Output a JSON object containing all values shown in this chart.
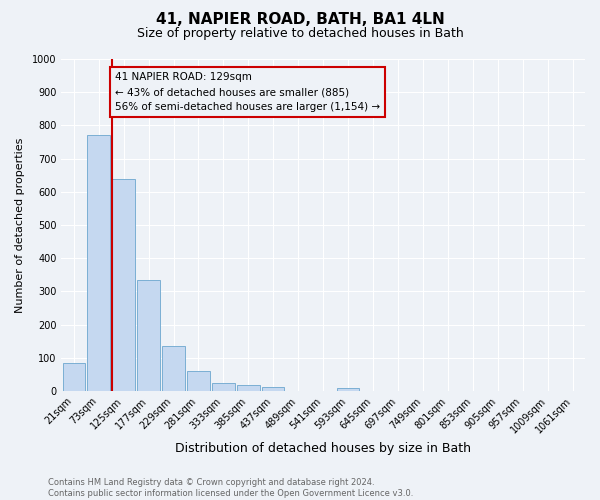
{
  "title": "41, NAPIER ROAD, BATH, BA1 4LN",
  "subtitle": "Size of property relative to detached houses in Bath",
  "xlabel": "Distribution of detached houses by size in Bath",
  "ylabel": "Number of detached properties",
  "categories": [
    "21sqm",
    "73sqm",
    "125sqm",
    "177sqm",
    "229sqm",
    "281sqm",
    "333sqm",
    "385sqm",
    "437sqm",
    "489sqm",
    "541sqm",
    "593sqm",
    "645sqm",
    "697sqm",
    "749sqm",
    "801sqm",
    "853sqm",
    "905sqm",
    "957sqm",
    "1009sqm",
    "1061sqm"
  ],
  "bar_values": [
    85,
    770,
    640,
    335,
    135,
    62,
    25,
    18,
    12,
    0,
    0,
    10,
    0,
    0,
    0,
    0,
    0,
    0,
    0,
    0,
    0
  ],
  "bar_color": "#c5d8f0",
  "bar_edge_color": "#7bafd4",
  "property_line_index": 2,
  "property_line_color": "#cc0000",
  "annotation_text": "41 NAPIER ROAD: 129sqm\n← 43% of detached houses are smaller (885)\n56% of semi-detached houses are larger (1,154) →",
  "annotation_box_color": "#cc0000",
  "ylim": [
    0,
    1000
  ],
  "yticks": [
    0,
    100,
    200,
    300,
    400,
    500,
    600,
    700,
    800,
    900,
    1000
  ],
  "background_color": "#eef2f7",
  "grid_color": "#ffffff",
  "footer_line1": "Contains HM Land Registry data © Crown copyright and database right 2024.",
  "footer_line2": "Contains public sector information licensed under the Open Government Licence v3.0.",
  "title_fontsize": 11,
  "subtitle_fontsize": 9,
  "xlabel_fontsize": 9,
  "ylabel_fontsize": 8,
  "annotation_fontsize": 7.5,
  "tick_fontsize": 7,
  "footer_fontsize": 6
}
